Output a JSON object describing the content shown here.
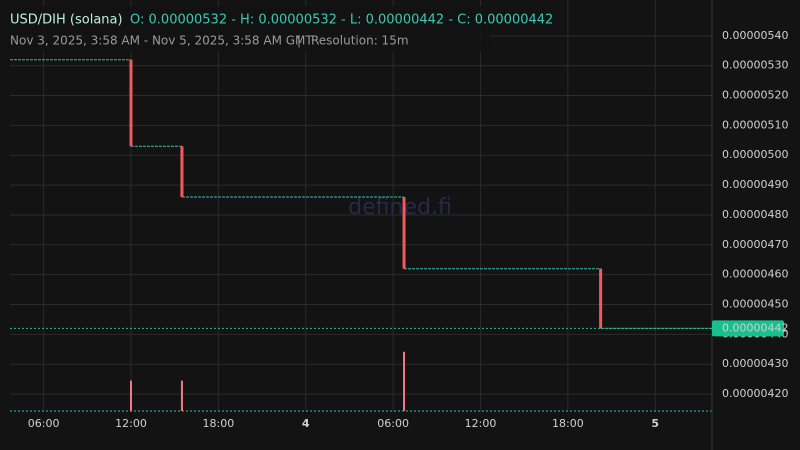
{
  "chart_data": {
    "type": "candlestick",
    "pair": "USD/DIH (solana)",
    "ohlc_text": "O: 0.00000532 - H: 0.00000532 - L: 0.00000442 - C: 0.00000442",
    "range_text": "Nov 3, 2025, 3:58 AM - Nov 5, 2025, 3:58 AM GMT",
    "resolution_text": "Resolution: 15m",
    "watermark": "defined.fi",
    "xlim": [
      "2025-11-03T03:58",
      "2025-11-05T03:58"
    ],
    "xticks": [
      {
        "value": "2025-11-03T06:00",
        "label": "06:00"
      },
      {
        "value": "2025-11-03T12:00",
        "label": "12:00"
      },
      {
        "value": "2025-11-03T18:00",
        "label": "18:00"
      },
      {
        "value": "2025-11-04T00:00",
        "label": "4"
      },
      {
        "value": "2025-11-04T06:00",
        "label": "06:00"
      },
      {
        "value": "2025-11-04T12:00",
        "label": "12:00"
      },
      {
        "value": "2025-11-04T18:00",
        "label": "18:00"
      },
      {
        "value": "2025-11-05T00:00",
        "label": "5"
      }
    ],
    "ylim": [
      4.14e-06,
      5.52e-06
    ],
    "yticks": [
      {
        "value": 5.4e-06,
        "label": "0.00000540"
      },
      {
        "value": 5.3e-06,
        "label": "0.00000530"
      },
      {
        "value": 5.2e-06,
        "label": "0.00000520"
      },
      {
        "value": 5.1e-06,
        "label": "0.00000510"
      },
      {
        "value": 5e-06,
        "label": "0.00000500"
      },
      {
        "value": 4.9e-06,
        "label": "0.00000490"
      },
      {
        "value": 4.8e-06,
        "label": "0.00000480"
      },
      {
        "value": 4.7e-06,
        "label": "0.00000470"
      },
      {
        "value": 4.6e-06,
        "label": "0.00000460"
      },
      {
        "value": 4.5e-06,
        "label": "0.00000450"
      },
      {
        "value": 4.4e-06,
        "label": "0.00000440"
      },
      {
        "value": 4.3e-06,
        "label": "0.00000430"
      },
      {
        "value": 4.2e-06,
        "label": "0.00000420"
      }
    ],
    "grid": true,
    "up_color": "#26c6a6",
    "down_color": "#f05a5a",
    "candles": {
      "time": [
        "2025-11-03T12:00",
        "2025-11-03T15:30",
        "2025-11-04T06:45",
        "2025-11-04T20:15"
      ],
      "open": [
        5.32e-06,
        5.03e-06,
        4.86e-06,
        4.62e-06
      ],
      "high": [
        5.32e-06,
        5.03e-06,
        4.86e-06,
        4.62e-06
      ],
      "low": [
        5.03e-06,
        4.86e-06,
        4.62e-06,
        4.42e-06
      ],
      "close": [
        5.03e-06,
        4.86e-06,
        4.62e-06,
        4.42e-06
      ]
    },
    "price_line": {
      "color": "#3fb8b0",
      "x": [
        "2025-11-03T03:58",
        "2025-11-03T12:00",
        "2025-11-03T15:30",
        "2025-11-04T06:45",
        "2025-11-04T20:15",
        "2025-11-05T03:58"
      ],
      "values": [
        5.32e-06,
        5.03e-06,
        4.86e-06,
        4.62e-06,
        4.42e-06,
        4.42e-06
      ]
    },
    "last_price": {
      "value": 4.42e-06,
      "value_label": "0.00000442",
      "color": "#18c08f"
    },
    "volume": {
      "color": "#f07a8a",
      "vlim": [
        0,
        100
      ],
      "x": [
        "2025-11-03T12:00",
        "2025-11-03T15:30",
        "2025-11-04T06:45"
      ],
      "values": [
        19,
        19,
        37
      ]
    }
  }
}
